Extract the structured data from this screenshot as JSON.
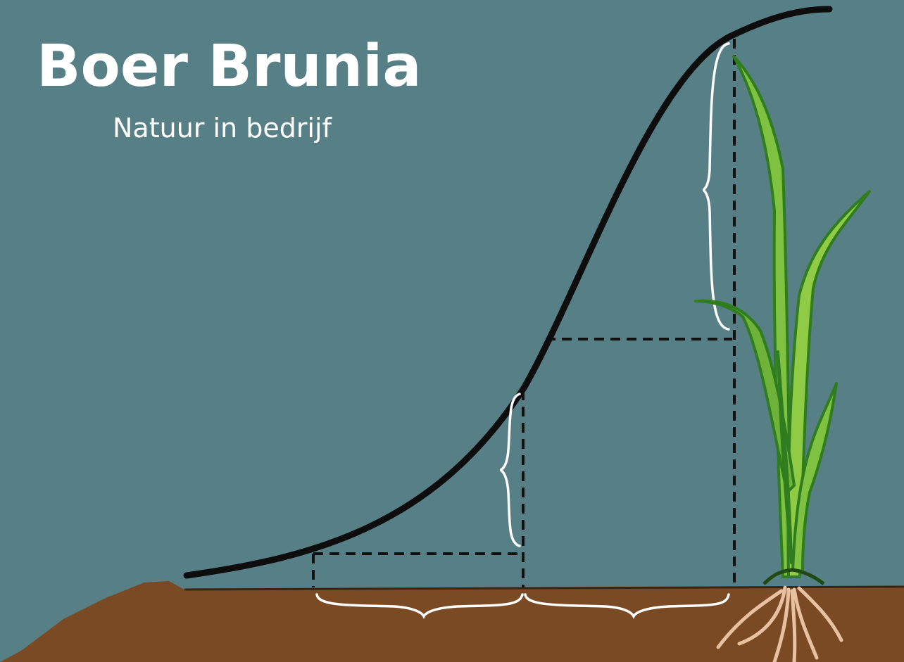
{
  "logo": {
    "title": "Boer Brunia",
    "subtitle": "Natuur in bedrijf"
  }
}
